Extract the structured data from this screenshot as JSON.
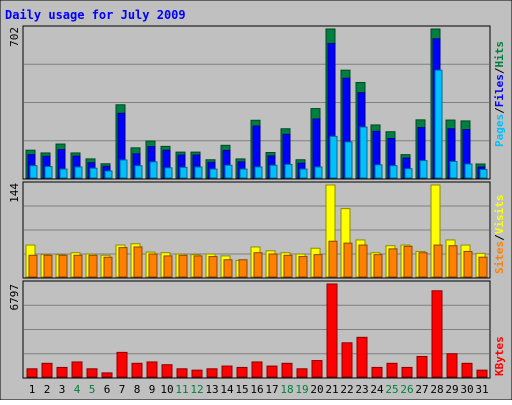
{
  "chart_data": {
    "type": "bar",
    "title": "Daily usage for July 2009",
    "categories": [
      "1",
      "2",
      "3",
      "4",
      "5",
      "6",
      "7",
      "8",
      "9",
      "10",
      "11",
      "12",
      "13",
      "14",
      "15",
      "16",
      "17",
      "18",
      "19",
      "20",
      "21",
      "22",
      "23",
      "24",
      "25",
      "26",
      "27",
      "28",
      "29",
      "30",
      "31"
    ],
    "weekend_days": [
      "4",
      "5",
      "11",
      "12",
      "18",
      "19",
      "25",
      "26"
    ],
    "panels": [
      {
        "id": "top",
        "scale_label": "702",
        "ylim": [
          0,
          702
        ],
        "series": [
          {
            "name": "Hits",
            "color": "#008040",
            "values": [
              131,
              118,
              160,
              118,
              90,
              67,
              345,
              142,
              174,
              149,
              122,
              122,
              86,
              154,
              90,
              272,
              120,
              232,
              86,
              327,
              702,
              508,
              450,
              250,
              218,
              110,
              274,
              702,
              273,
              269,
              66
            ]
          },
          {
            "name": "Files",
            "color": "#0000ff",
            "values": [
              110,
              102,
              134,
              103,
              72,
              55,
              305,
              114,
              148,
              131,
              108,
              108,
              74,
              130,
              76,
              245,
              104,
              206,
              70,
              278,
              634,
              470,
              402,
              220,
              186,
              94,
              238,
              656,
              232,
              228,
              52
            ]
          },
          {
            "name": "Pages",
            "color": "#00c0ff",
            "values": [
              58,
              54,
              42,
              52,
              46,
              33,
              85,
              58,
              76,
              48,
              50,
              52,
              42,
              60,
              42,
              52,
              60,
              64,
              42,
              52,
              196,
              170,
              240,
              62,
              58,
              44,
              82,
              508,
              78,
              66,
              40
            ]
          }
        ]
      },
      {
        "id": "middle",
        "scale_label": "144",
        "ylim": [
          0,
          144
        ],
        "series": [
          {
            "name": "Visits",
            "color": "#ffff00",
            "values": [
              50,
              35,
              35,
              38,
              36,
              34,
              50,
              52,
              39,
              38,
              36,
              35,
              36,
              33,
              26,
              47,
              41,
              38,
              36,
              45,
              144,
              107,
              58,
              38,
              49,
              50,
              40,
              144,
              58,
              50,
              37
            ]
          },
          {
            "name": "Sites",
            "color": "#ff8000",
            "values": [
              34,
              34,
              34,
              34,
              34,
              31,
              46,
              47,
              36,
              33,
              34,
              33,
              32,
              27,
              27,
              38,
              36,
              34,
              32,
              35,
              56,
              53,
              50,
              35,
              44,
              48,
              38,
              50,
              49,
              40,
              31
            ]
          }
        ]
      },
      {
        "id": "bottom",
        "scale_label": "6797",
        "ylim": [
          0,
          6797
        ],
        "series": [
          {
            "name": "KBytes",
            "color": "#ff0000",
            "values": [
              600,
              1000,
              700,
              1100,
              600,
              300,
              1800,
              1000,
              1100,
              900,
              600,
              500,
              600,
              800,
              700,
              1100,
              800,
              1000,
              600,
              1200,
              6797,
              2500,
              2900,
              700,
              1000,
              700,
              1500,
              6300,
              1700,
              1000,
              500
            ]
          }
        ]
      }
    ],
    "legend": {
      "top": [
        "Pages",
        "/",
        "Files",
        "/",
        "Hits"
      ],
      "middle": [
        "Sites",
        "/",
        "Visits"
      ],
      "bottom": [
        "KBytes"
      ]
    },
    "grid": true
  },
  "colors": {
    "background": "#c0c0c0",
    "frame": "#000000",
    "title": "#0000ff",
    "weekday_label": "#000000",
    "weekend_label": "#008040",
    "separator": "#ffffff"
  }
}
